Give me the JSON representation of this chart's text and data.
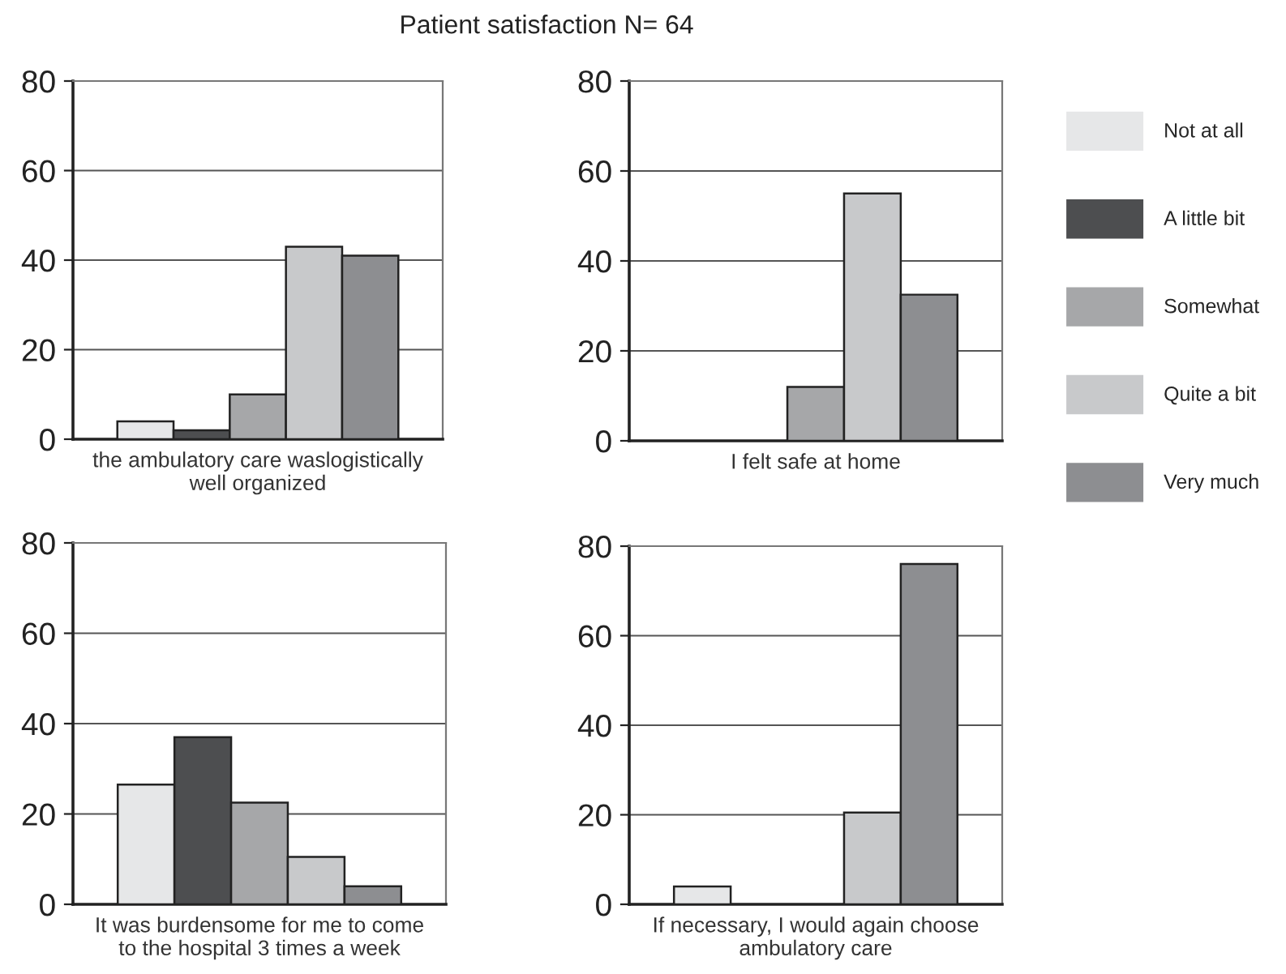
{
  "chart_data": [
    {
      "type": "bar",
      "title": "Patient satisfaction N= 64",
      "xlabel": "the ambulatory care waslogistically\nwell organized",
      "categories": [
        null
      ],
      "ylim": [
        0,
        80
      ],
      "yticks": [
        0,
        20,
        40,
        60,
        80
      ],
      "grid": "y",
      "legend": "right",
      "series": [
        {
          "name": "Not at all",
          "color": "#e6e7e8",
          "values": [
            4
          ]
        },
        {
          "name": "A little bit",
          "color": "#4d4e50",
          "values": [
            2
          ]
        },
        {
          "name": "Somewhat",
          "color": "#a6a7a9",
          "values": [
            10
          ]
        },
        {
          "name": "Quite a bit",
          "color": "#c8c9cb",
          "values": [
            43
          ]
        },
        {
          "name": "Very much",
          "color": "#8d8e91",
          "values": [
            41
          ]
        }
      ]
    },
    {
      "type": "bar",
      "xlabel": "I felt safe at home",
      "categories": [
        null
      ],
      "ylim": [
        0,
        80
      ],
      "yticks": [
        0,
        20,
        40,
        60,
        80
      ],
      "grid": "y",
      "series": [
        {
          "color": "#e6e7e8",
          "values": [
            0
          ]
        },
        {
          "color": "#4d4e50",
          "values": [
            0
          ]
        },
        {
          "color": "#a6a7a9",
          "values": [
            12
          ]
        },
        {
          "color": "#c8c9cb",
          "values": [
            55
          ]
        },
        {
          "color": "#8d8e91",
          "values": [
            32.5
          ]
        }
      ]
    },
    {
      "type": "bar",
      "xlabel": "It was burdensome for me to come\nto the hospital 3 times a week",
      "categories": [
        null
      ],
      "ylim": [
        0,
        80
      ],
      "yticks": [
        0,
        20,
        40,
        60,
        80
      ],
      "grid": "y",
      "series": [
        {
          "color": "#e6e7e8",
          "values": [
            26.5
          ]
        },
        {
          "color": "#4d4e50",
          "values": [
            37
          ]
        },
        {
          "color": "#a6a7a9",
          "values": [
            22.5
          ]
        },
        {
          "color": "#c8c9cb",
          "values": [
            10.5
          ]
        },
        {
          "color": "#8d8e91",
          "values": [
            4
          ]
        }
      ]
    },
    {
      "type": "bar",
      "xlabel": "If necessary, I would again choose\nambulatory care",
      "categories": [
        null
      ],
      "ylim": [
        0,
        80
      ],
      "yticks": [
        0,
        20,
        40,
        60,
        80
      ],
      "grid": "y",
      "series": [
        {
          "color": "#e6e7e8",
          "values": [
            4
          ]
        },
        {
          "color": "#4d4e50",
          "values": [
            0
          ]
        },
        {
          "color": "#a6a7a9",
          "values": [
            0
          ]
        },
        {
          "color": "#c8c9cb",
          "values": [
            20.5
          ]
        },
        {
          "color": "#8d8e91",
          "values": [
            76
          ]
        }
      ]
    }
  ]
}
